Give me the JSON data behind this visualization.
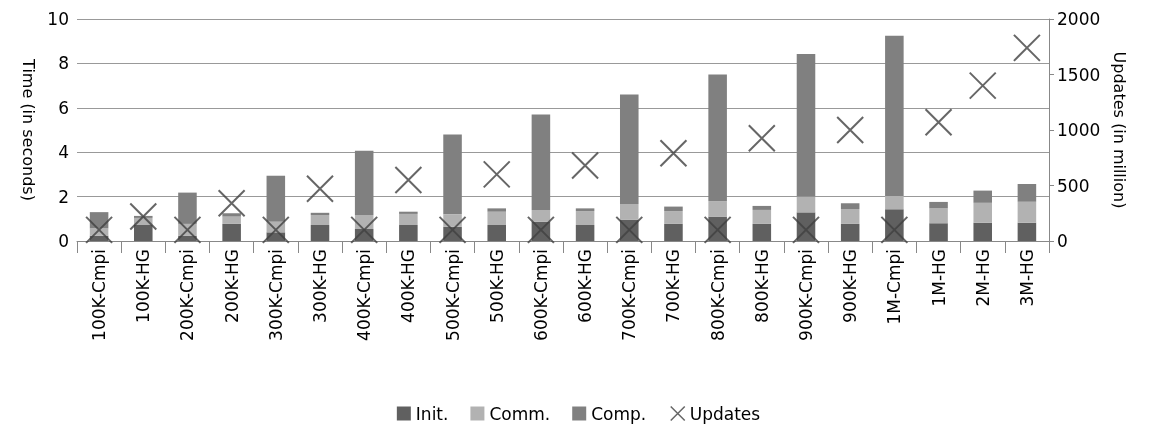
{
  "chart_data": {
    "type": "bar",
    "stacked": true,
    "xlabel": null,
    "ylabel": "Time (in seconds)",
    "y2label": "Updates (in million)",
    "categories": [
      "100K-Cmpi",
      "100K-HG",
      "200K-Cmpi",
      "200K-HG",
      "300K-Cmpi",
      "300K-HG",
      "400K-Cmpi",
      "400K-HG",
      "500K-Cmpi",
      "500K-HG",
      "600K-Cmpi",
      "600K-HG",
      "700K-Cmpi",
      "700K-HG",
      "800K-Cmpi",
      "800K-HG",
      "900K-Cmpi",
      "900K-HG",
      "1M-Cmpi",
      "1M-HG",
      "2M-HG",
      "3M-HG"
    ],
    "series": [
      {
        "name": "Init.",
        "color": "#606060",
        "values": [
          0.24,
          0.72,
          0.23,
          0.77,
          0.39,
          0.72,
          0.54,
          0.72,
          0.64,
          0.72,
          0.87,
          0.72,
          0.95,
          0.77,
          1.1,
          0.77,
          1.29,
          0.77,
          1.43,
          0.8,
          0.82,
          0.82
        ]
      },
      {
        "name": "Comm.",
        "color": "#b2b2b2",
        "values": [
          0.33,
          0.32,
          0.54,
          0.33,
          0.48,
          0.45,
          0.63,
          0.5,
          0.56,
          0.6,
          0.53,
          0.63,
          0.72,
          0.58,
          0.7,
          0.63,
          0.71,
          0.67,
          0.6,
          0.67,
          0.9,
          0.95
        ]
      },
      {
        "name": "Comp.",
        "color": "#808080",
        "values": [
          0.73,
          0.09,
          1.41,
          0.15,
          2.07,
          0.1,
          2.9,
          0.1,
          3.6,
          0.15,
          4.3,
          0.12,
          4.93,
          0.2,
          5.7,
          0.18,
          6.42,
          0.26,
          7.22,
          0.29,
          0.55,
          0.8
        ]
      },
      {
        "name": "Updates",
        "type": "scatter",
        "axis": "y2",
        "marker": "cross",
        "color": "#404040",
        "values": [
          100,
          220,
          100,
          340,
          100,
          470,
          100,
          550,
          100,
          600,
          100,
          680,
          100,
          790,
          100,
          925,
          100,
          1000,
          100,
          1070,
          1400,
          1740
        ]
      }
    ],
    "ylim": [
      0,
      10
    ],
    "yticks": [
      0,
      2,
      4,
      6,
      8,
      10
    ],
    "y2lim": [
      0,
      2000
    ],
    "y2ticks": [
      0,
      500,
      1000,
      1500,
      2000
    ],
    "grid": "y",
    "legend": "bottom"
  }
}
